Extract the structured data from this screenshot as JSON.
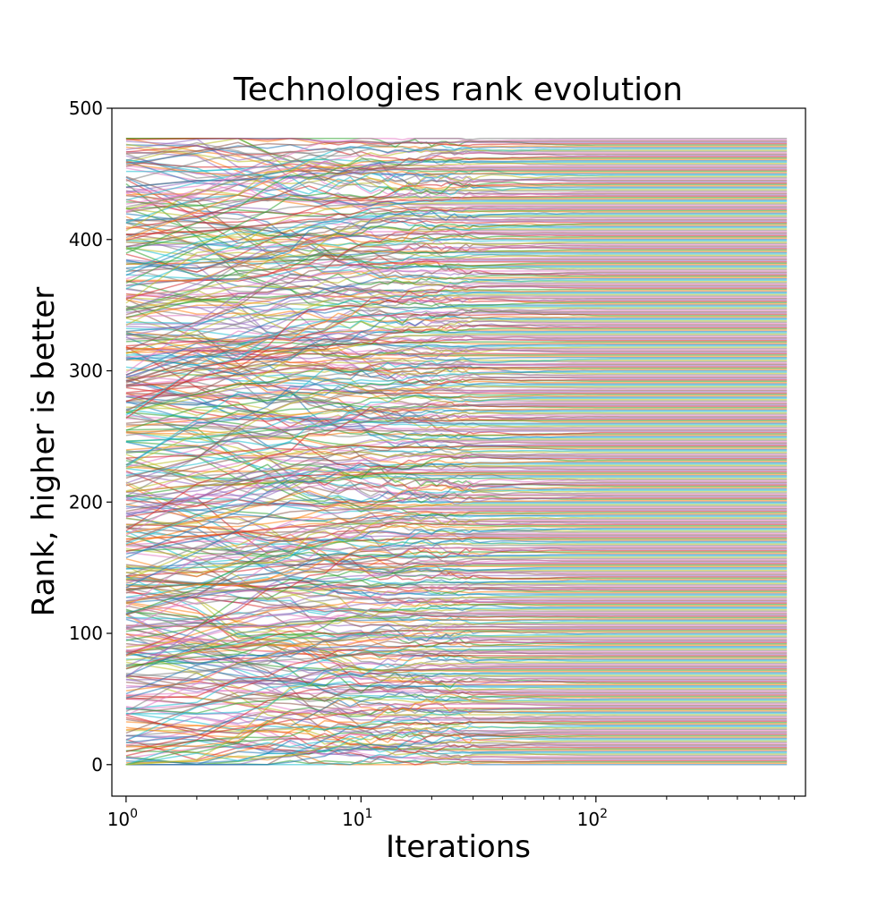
{
  "chart_data": {
    "type": "line",
    "title": "Technologies rank evolution",
    "xlabel": "Iterations",
    "ylabel": "Rank, higher is better",
    "x_scale": "log",
    "xlim": [
      0.87,
      780
    ],
    "ylim": [
      -24,
      500
    ],
    "x_range": [
      1,
      650
    ],
    "y_ticks": [
      0,
      100,
      200,
      300,
      400,
      500
    ],
    "x_ticks": [
      {
        "value": 1,
        "base": "10",
        "exp": "0"
      },
      {
        "value": 10,
        "base": "10",
        "exp": "1"
      },
      {
        "value": 100,
        "base": "10",
        "exp": "2"
      }
    ],
    "series_count": 478,
    "rank_max": 477,
    "convergence": "ranks fluctuate strongly during the first ~100 iterations, then each technology settles onto a constant rank through iteration ~650",
    "colors": [
      "#1f77b4",
      "#ff7f0e",
      "#2ca02c",
      "#d62728",
      "#9467bd",
      "#8c564b",
      "#e377c2",
      "#7f7f7f",
      "#bcbd22",
      "#17becf"
    ],
    "grid": false,
    "legend": "none"
  }
}
